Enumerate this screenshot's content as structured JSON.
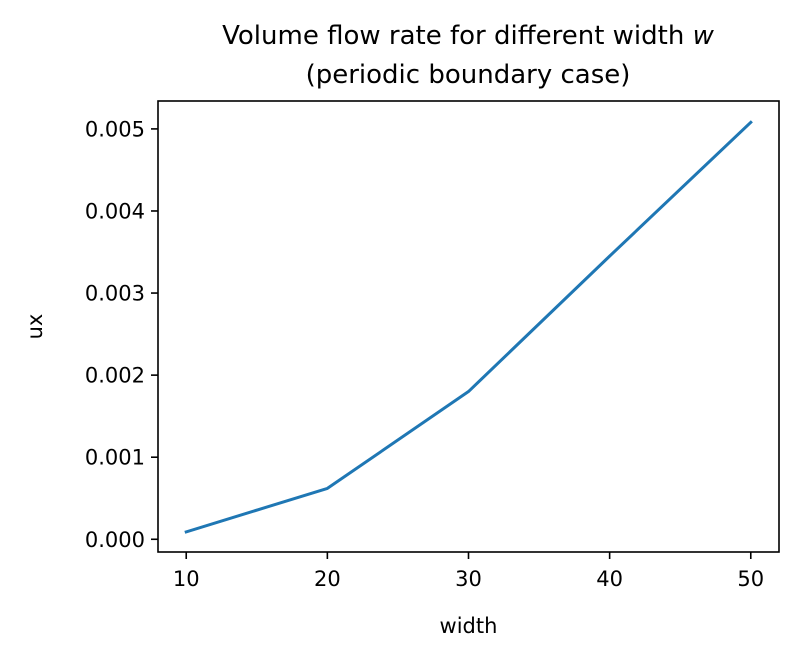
{
  "chart_data": {
    "type": "line",
    "title_line1_prefix": "Volume flow rate for different width ",
    "title_line1_var": "w",
    "title_line2": "(periodic boundary case)",
    "xlabel": "width",
    "ylabel": "ux",
    "x": [
      10,
      20,
      30,
      40,
      50
    ],
    "series": [
      {
        "values": [
          9e-05,
          0.00062,
          0.0018,
          0.00345,
          0.00508
        ],
        "color": "#1f77b4"
      }
    ],
    "xlim": [
      8,
      52
    ],
    "ylim": [
      -0.000155,
      0.00534
    ],
    "xticks": [
      10,
      20,
      30,
      40,
      50
    ],
    "xtick_labels": [
      "10",
      "20",
      "30",
      "40",
      "50"
    ],
    "yticks": [
      0.0,
      0.001,
      0.002,
      0.003,
      0.004,
      0.005
    ],
    "ytick_labels": [
      "0.000",
      "0.001",
      "0.002",
      "0.003",
      "0.004",
      "0.005"
    ],
    "grid": false,
    "legend": false
  }
}
